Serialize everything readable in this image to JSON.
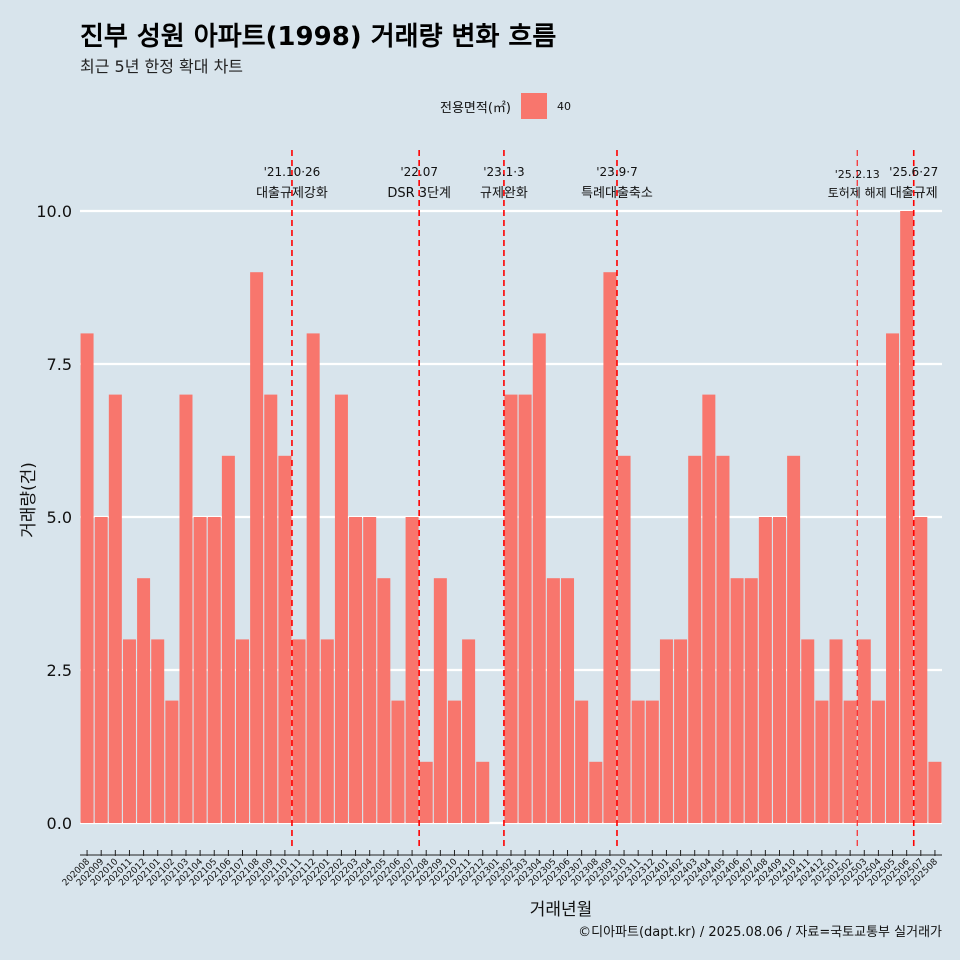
{
  "title": "진부 성원 아파트(1998) 거래량 변화 흐름",
  "subtitle": "최근 5년 한정 확대 차트",
  "legend": {
    "title": "전용면적(㎡)",
    "items": [
      "40"
    ]
  },
  "caption": "©디아파트(dapt.kr) / 2025.08.06 / 자료=국토교통부 실거래가",
  "chart_data": {
    "type": "bar",
    "xlabel": "거래년월",
    "ylabel": "거래량(건)",
    "ylim": [
      0,
      10
    ],
    "y_ticks": [
      "0.0",
      "2.5",
      "5.0",
      "7.5",
      "10.0"
    ],
    "grid": true,
    "legend_position": "top",
    "bar_color": "#f8766d",
    "categories": [
      "202008",
      "202009",
      "202010",
      "202011",
      "202012",
      "202101",
      "202102",
      "202103",
      "202104",
      "202105",
      "202106",
      "202107",
      "202108",
      "202109",
      "202110",
      "202111",
      "202112",
      "202201",
      "202202",
      "202203",
      "202204",
      "202205",
      "202206",
      "202207",
      "202208",
      "202209",
      "202210",
      "202211",
      "202212",
      "202301",
      "202302",
      "202303",
      "202304",
      "202305",
      "202306",
      "202307",
      "202308",
      "202309",
      "202310",
      "202311",
      "202312",
      "202401",
      "202402",
      "202403",
      "202404",
      "202405",
      "202406",
      "202407",
      "202408",
      "202409",
      "202410",
      "202411",
      "202412",
      "202501",
      "202502",
      "202503",
      "202504",
      "202505",
      "202506",
      "202507",
      "202508"
    ],
    "series": [
      {
        "values": [
          8,
          5,
          7,
          3,
          4,
          3,
          2,
          7,
          5,
          5,
          6,
          3,
          9,
          7,
          6,
          3,
          8,
          3,
          7,
          5,
          5,
          4,
          2,
          5,
          1,
          4,
          2,
          3,
          1,
          0,
          7,
          7,
          8,
          4,
          4,
          2,
          1,
          9,
          6,
          2,
          2,
          3,
          3,
          6,
          7,
          6,
          4,
          4,
          5,
          5,
          6,
          3,
          2,
          3,
          2,
          3,
          2,
          8,
          10,
          5,
          1
        ]
      }
    ],
    "annotations": [
      {
        "date": "'21.10·26",
        "label": "대출규제강화",
        "after": "202110"
      },
      {
        "date": "'22.07",
        "label": "DSR 3단계",
        "after": "202207"
      },
      {
        "date": "'23.1·3",
        "label": "규제완화",
        "after": "202301"
      },
      {
        "date": "'23.9·7",
        "label": "특례대출축소",
        "after": "202309"
      },
      {
        "date": "'25.2.13",
        "label": "토허제 해제",
        "after": "202502"
      },
      {
        "date": "'25.6·27",
        "label": "대출규제",
        "after": "202506"
      }
    ]
  }
}
